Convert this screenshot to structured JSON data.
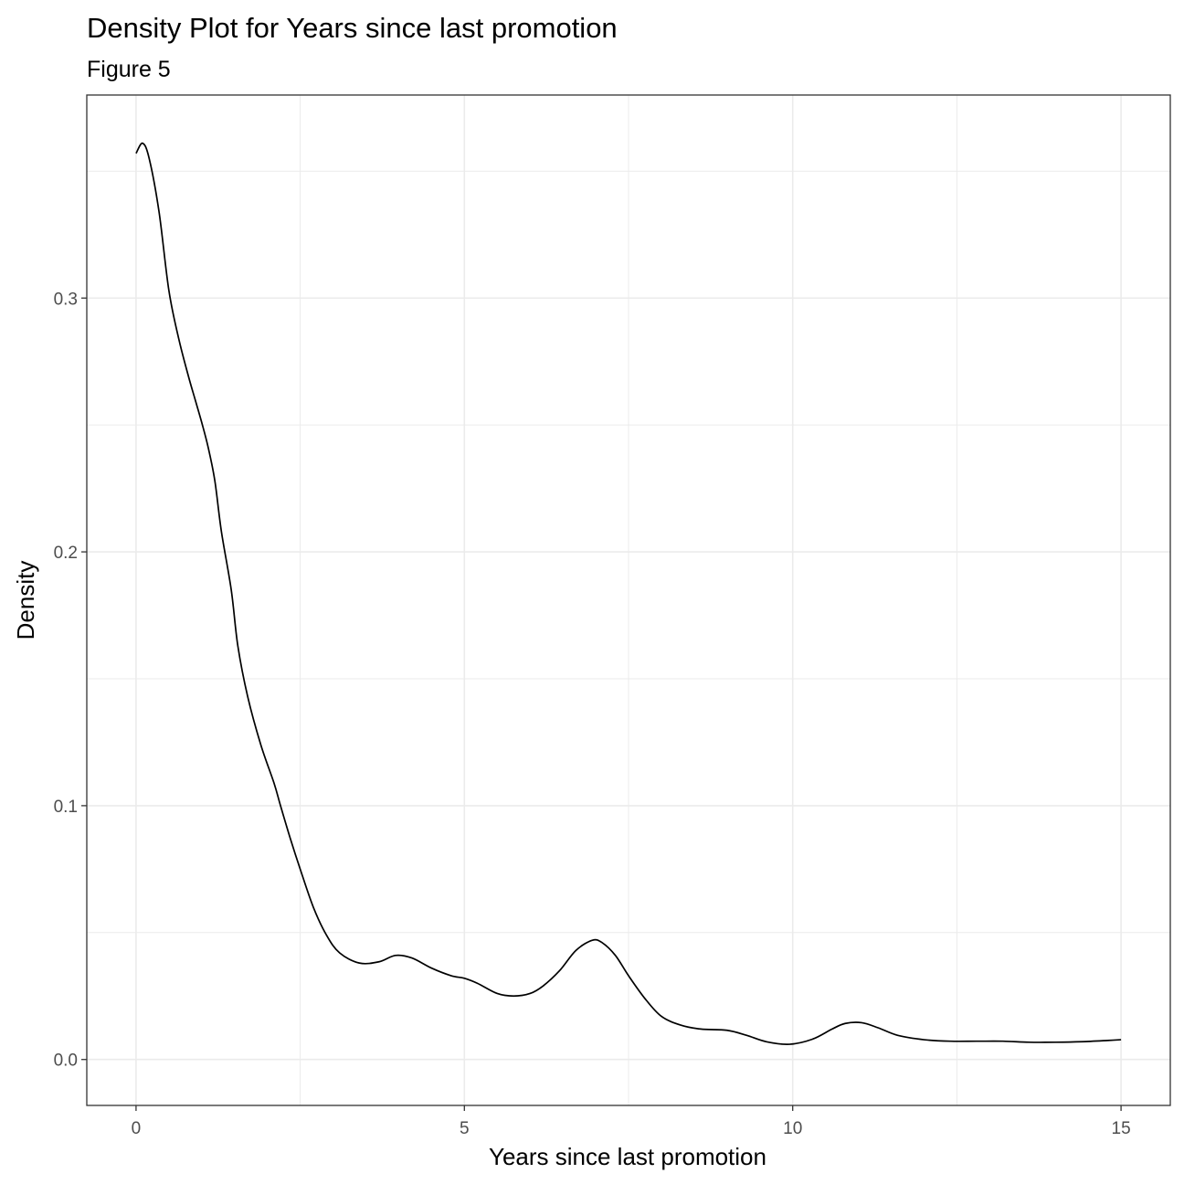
{
  "chart_data": {
    "type": "line",
    "title": "Density Plot for Years since last promotion",
    "subtitle": "Figure 5",
    "xlabel": "Years since last promotion",
    "ylabel": "Density",
    "xlim": [
      -0.75,
      15.75
    ],
    "ylim": [
      -0.0181,
      0.38
    ],
    "x_ticks": [
      0,
      5,
      10,
      15
    ],
    "x_tick_labels": [
      "0",
      "5",
      "10",
      "15"
    ],
    "x_minor_ticks": [
      2.5,
      7.5,
      12.5
    ],
    "y_ticks": [
      0.0,
      0.1,
      0.2,
      0.3
    ],
    "y_tick_labels": [
      "0.0",
      "0.1",
      "0.2",
      "0.3"
    ],
    "y_minor_ticks": [
      0.05,
      0.15,
      0.25,
      0.35
    ],
    "grid": true,
    "legend": "none",
    "series": [
      {
        "x": [
          0,
          0.1,
          0.2,
          0.35,
          0.5,
          0.65,
          0.8,
          0.9,
          1.0,
          1.1,
          1.2,
          1.3,
          1.45,
          1.55,
          1.7,
          1.9,
          2.1,
          2.2,
          2.35,
          2.5,
          2.7,
          2.9,
          3.1,
          3.4,
          3.7,
          3.95,
          4.2,
          4.5,
          4.8,
          5.0,
          5.2,
          5.5,
          5.75,
          6.0,
          6.2,
          6.45,
          6.7,
          6.95,
          7.1,
          7.3,
          7.5,
          7.75,
          8.0,
          8.3,
          8.6,
          9.0,
          9.3,
          9.6,
          9.95,
          10.3,
          10.6,
          10.8,
          11.05,
          11.3,
          11.6,
          12.0,
          12.4,
          12.8,
          13.2,
          13.6,
          14.0,
          14.4,
          14.8,
          15.0
        ],
        "y": [
          0.357,
          0.361,
          0.355,
          0.334,
          0.303,
          0.284,
          0.269,
          0.26,
          0.251,
          0.241,
          0.228,
          0.208,
          0.185,
          0.163,
          0.143,
          0.124,
          0.109,
          0.1,
          0.087,
          0.075,
          0.06,
          0.049,
          0.042,
          0.038,
          0.0385,
          0.041,
          0.04,
          0.036,
          0.033,
          0.032,
          0.03,
          0.026,
          0.025,
          0.026,
          0.029,
          0.035,
          0.043,
          0.047,
          0.046,
          0.041,
          0.033,
          0.024,
          0.017,
          0.0135,
          0.012,
          0.0115,
          0.0095,
          0.007,
          0.006,
          0.008,
          0.012,
          0.0142,
          0.0145,
          0.0125,
          0.0095,
          0.0078,
          0.0072,
          0.0072,
          0.0072,
          0.0068,
          0.0068,
          0.007,
          0.0075,
          0.0078
        ]
      }
    ]
  },
  "colors": {
    "line": "#000000",
    "grid": "#ebebeb",
    "panel_border": "#333333",
    "tick_text": "#4d4d4d",
    "background": "#ffffff"
  }
}
